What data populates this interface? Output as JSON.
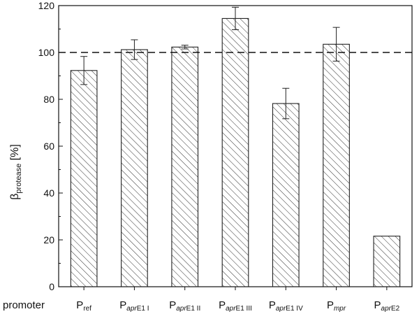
{
  "chart_data": {
    "type": "bar",
    "categories": [
      {
        "main": "P",
        "sub": "ref",
        "sub_italic": ""
      },
      {
        "main": "P",
        "sub_italic": "apr",
        "sub": "E1 I"
      },
      {
        "main": "P",
        "sub_italic": "apr",
        "sub": "E1 II"
      },
      {
        "main": "P",
        "sub_italic": "apr",
        "sub": "E1 III"
      },
      {
        "main": "P",
        "sub_italic": "apr",
        "sub": "E1 IV"
      },
      {
        "main": "P",
        "sub_italic": "mpr",
        "sub": ""
      },
      {
        "main": "P",
        "sub_italic": "apr",
        "sub": "E2"
      }
    ],
    "values": [
      92.3,
      101.2,
      102.3,
      114.5,
      78.2,
      103.5,
      21.6
    ],
    "errors": [
      6.0,
      4.2,
      0.8,
      4.8,
      6.5,
      7.2,
      0
    ],
    "reference_line": 100,
    "ylim": [
      0,
      120
    ],
    "yticks": [
      0,
      20,
      40,
      60,
      80,
      100,
      120
    ],
    "ylabel": {
      "main": "β",
      "sub": "protease",
      "unit": " [%]"
    },
    "xlabel": "promoter",
    "fill_pattern": "diagonal-hatch",
    "grid": false,
    "colors": {
      "bar_stroke": "#222222",
      "hatch": "#333333",
      "axis": "#111111"
    }
  }
}
